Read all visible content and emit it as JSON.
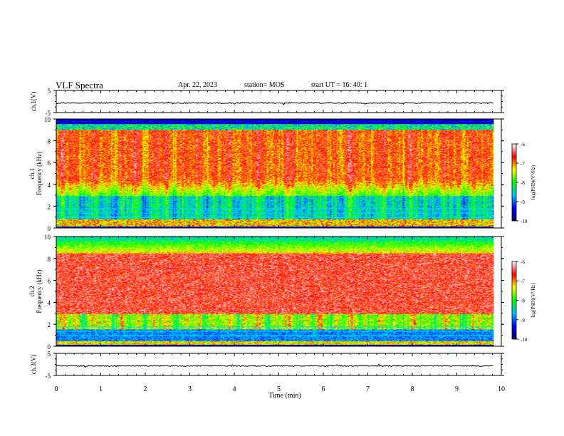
{
  "header": {
    "title": "VLF Spectra",
    "date": "Apr. 22, 2023",
    "station": "station= MOS",
    "start_ut": "start  UT =   16: 40: 1"
  },
  "chart_data": [
    {
      "type": "line",
      "name": "ch1-waveform",
      "ylabel": "ch.1(V)",
      "ylim": [
        -5,
        5
      ],
      "yticks": [
        5,
        -5
      ],
      "x": [
        0,
        9.83
      ],
      "y": [
        0,
        0
      ]
    },
    {
      "type": "heatmap",
      "name": "ch1-spectrogram",
      "ylabel": "ch.1\nFrequency (kHz)",
      "ylim": [
        0,
        10
      ],
      "yticks": [
        0,
        2,
        4,
        6,
        8,
        10
      ],
      "xlim": [
        0,
        10
      ],
      "data_xmax": 9.83,
      "colorbar": {
        "label": "log(PSD)(V²/Hz)",
        "range": [
          -10,
          -6
        ],
        "ticks": [
          -6,
          -7,
          -8,
          -9,
          -10
        ]
      }
    },
    {
      "type": "heatmap",
      "name": "ch2-spectrogram",
      "ylabel": "ch.2\nFrequency (kHz)",
      "ylim": [
        0,
        10
      ],
      "yticks": [
        0,
        2,
        4,
        6,
        8,
        10
      ],
      "xlim": [
        0,
        10
      ],
      "data_xmax": 9.83,
      "colorbar": {
        "label": "log(PSD)(V²/Hz)",
        "range": [
          -10,
          -6
        ],
        "ticks": [
          -6,
          -7,
          -8,
          -9,
          -10
        ]
      }
    },
    {
      "type": "line",
      "name": "ch3-waveform",
      "ylabel": "ch.3(V)",
      "ylim": [
        -5,
        5
      ],
      "yticks": [
        5,
        -5
      ],
      "x": [
        0,
        9.83
      ],
      "y": [
        0,
        0
      ]
    }
  ],
  "x_axis": {
    "label": "Time  (min)",
    "range": [
      0,
      10
    ],
    "ticks": [
      0,
      1,
      2,
      3,
      4,
      5,
      6,
      7,
      8,
      9,
      10
    ]
  },
  "colors": {
    "colormap": [
      "#000064",
      "#0000ff",
      "#00c8ff",
      "#00ff00",
      "#ffff00",
      "#ff0000",
      "#ffffff"
    ],
    "axis": "#000000",
    "background": "#ffffff"
  }
}
